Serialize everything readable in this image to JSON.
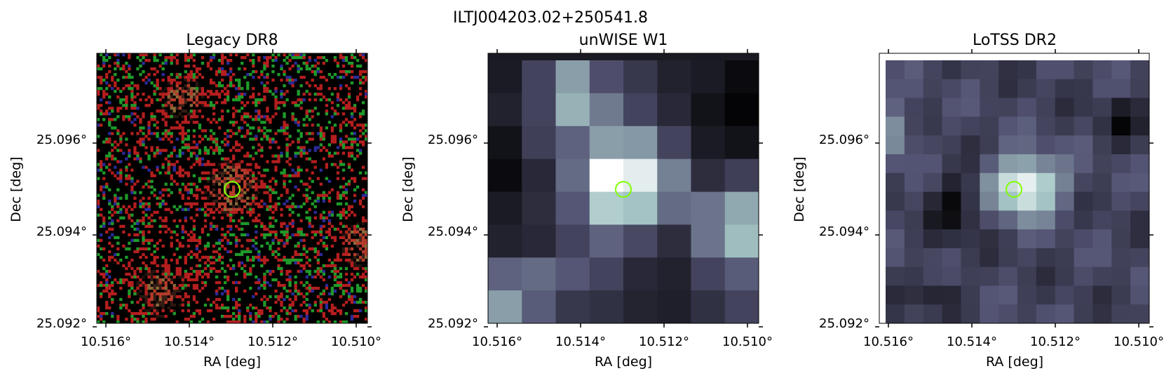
{
  "figure": {
    "title": "ILTJ004203.02+250541.8"
  },
  "panels": [
    {
      "title": "Legacy DR8",
      "xlabel": "RA [deg]",
      "ylabel": "Dec [deg]",
      "xticks": [
        "10.516°",
        "10.514°",
        "10.512°",
        "10.510°"
      ],
      "yticks": [
        "25.096°",
        "25.094°",
        "25.092°"
      ],
      "image_type": "rgb-noise",
      "marker": {
        "type": "circle",
        "color": "#7fff00"
      }
    },
    {
      "title": "unWISE W1",
      "xlabel": "RA [deg]",
      "ylabel": "Dec [deg]",
      "xticks": [
        "10.516°",
        "10.514°",
        "10.512°",
        "10.510°"
      ],
      "yticks": [
        "25.096°",
        "25.094°",
        "25.092°"
      ],
      "image_type": "bone-grid",
      "marker": {
        "type": "circle",
        "color": "#7fff00"
      }
    },
    {
      "title": "LoTSS DR2",
      "xlabel": "RA [deg]",
      "ylabel": "Dec [deg]",
      "xticks": [
        "10.516°",
        "10.514°",
        "10.512°",
        "10.510°"
      ],
      "yticks": [
        "25.096°",
        "25.094°",
        "25.092°"
      ],
      "image_type": "bone-grid",
      "marker": {
        "type": "circle",
        "color": "#7fff00"
      }
    }
  ],
  "colors": {
    "marker": "#7fff00",
    "legacy_red": "#c81e1e",
    "legacy_green": "#1e9628",
    "background": "#ffffff"
  }
}
